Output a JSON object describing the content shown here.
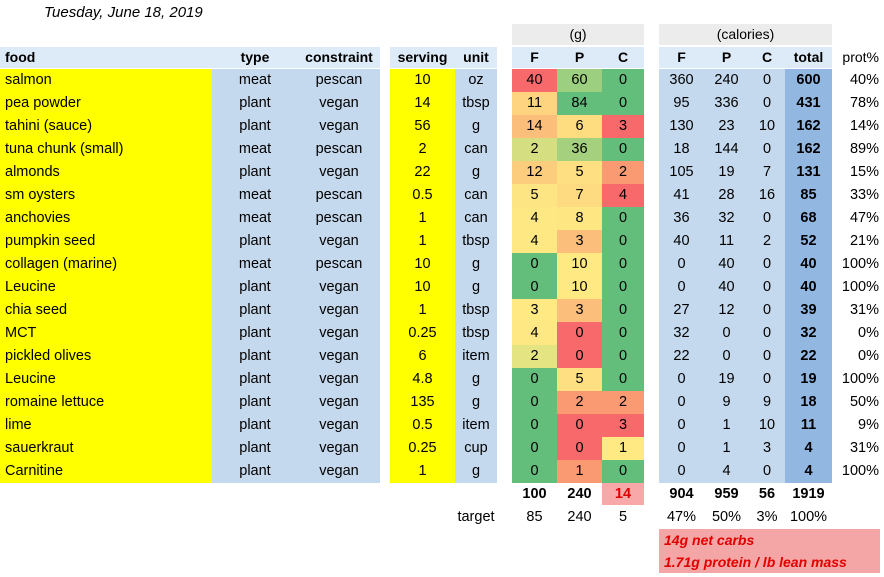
{
  "date": "Tuesday, June 18, 2019",
  "headers": {
    "food": "food",
    "type": "type",
    "constraint": "constraint",
    "serving": "serving",
    "unit": "unit",
    "g_group": "(g)",
    "cal_group": "(calories)",
    "gF": "F",
    "gP": "P",
    "gC": "C",
    "cF": "F",
    "cP": "P",
    "cC": "C",
    "total": "total",
    "prot": "prot%"
  },
  "rows": [
    {
      "food": "salmon",
      "type": "meat",
      "constraint": "pescan",
      "serving": "10",
      "unit": "oz",
      "gF": "40",
      "gP": "60",
      "gC": "0",
      "cF": "360",
      "cP": "240",
      "cC": "0",
      "total": "600",
      "prot": "40%",
      "colF": "#f8696b",
      "colP": "#9ccf7f",
      "colC": "#63be7b"
    },
    {
      "food": "pea powder",
      "type": "plant",
      "constraint": "vegan",
      "serving": "14",
      "unit": "tbsp",
      "gF": "11",
      "gP": "84",
      "gC": "0",
      "cF": "95",
      "cP": "336",
      "cC": "0",
      "total": "431",
      "prot": "78%",
      "colF": "#fed480",
      "colP": "#63be7b",
      "colC": "#63be7b"
    },
    {
      "food": "tahini (sauce)",
      "type": "plant",
      "constraint": "vegan",
      "serving": "56",
      "unit": "g",
      "gF": "14",
      "gP": "6",
      "gC": "3",
      "cF": "130",
      "cP": "23",
      "cC": "10",
      "total": "162",
      "prot": "14%",
      "colF": "#fcbf7b",
      "colP": "#fedd81",
      "colC": "#f8696b"
    },
    {
      "food": "tuna chunk (small)",
      "type": "meat",
      "constraint": "pescan",
      "serving": "2",
      "unit": "can",
      "gF": "2",
      "gP": "36",
      "gC": "0",
      "cF": "18",
      "cP": "144",
      "cC": "0",
      "total": "162",
      "prot": "89%",
      "colF": "#d5df81",
      "colP": "#a5d17f",
      "colC": "#63be7b"
    },
    {
      "food": "almonds",
      "type": "plant",
      "constraint": "vegan",
      "serving": "22",
      "unit": "g",
      "gF": "12",
      "gP": "5",
      "gC": "2",
      "cF": "105",
      "cP": "19",
      "cC": "7",
      "total": "131",
      "prot": "15%",
      "colF": "#fdcd7e",
      "colP": "#fee082",
      "colC": "#fa9a73"
    },
    {
      "food": "sm oysters",
      "type": "meat",
      "constraint": "pescan",
      "serving": "0.5",
      "unit": "can",
      "gF": "5",
      "gP": "7",
      "gC": "4",
      "cF": "41",
      "cP": "28",
      "cC": "16",
      "total": "85",
      "prot": "33%",
      "colF": "#fee583",
      "colP": "#fedb81",
      "colC": "#f8696b"
    },
    {
      "food": "anchovies",
      "type": "meat",
      "constraint": "pescan",
      "serving": "1",
      "unit": "can",
      "gF": "4",
      "gP": "8",
      "gC": "0",
      "cF": "36",
      "cP": "32",
      "cC": "0",
      "total": "68",
      "prot": "47%",
      "colF": "#fee883",
      "colP": "#fee683",
      "colC": "#63be7b"
    },
    {
      "food": "pumpkin seed",
      "type": "plant",
      "constraint": "vegan",
      "serving": "1",
      "unit": "tbsp",
      "gF": "4",
      "gP": "3",
      "gC": "0",
      "cF": "40",
      "cP": "11",
      "cC": "2",
      "total": "52",
      "prot": "21%",
      "colF": "#fee883",
      "colP": "#fcbf7b",
      "colC": "#63be7b"
    },
    {
      "food": "collagen (marine)",
      "type": "meat",
      "constraint": "pescan",
      "serving": "10",
      "unit": "g",
      "gF": "0",
      "gP": "10",
      "gC": "0",
      "cF": "0",
      "cP": "40",
      "cC": "0",
      "total": "40",
      "prot": "100%",
      "colF": "#63be7b",
      "colP": "#fee983",
      "colC": "#63be7b"
    },
    {
      "food": "Leucine",
      "type": "plant",
      "constraint": "vegan",
      "serving": "10",
      "unit": "g",
      "gF": "0",
      "gP": "10",
      "gC": "0",
      "cF": "0",
      "cP": "40",
      "cC": "0",
      "total": "40",
      "prot": "100%",
      "colF": "#63be7b",
      "colP": "#fee983",
      "colC": "#63be7b"
    },
    {
      "food": "chia seed",
      "type": "plant",
      "constraint": "vegan",
      "serving": "1",
      "unit": "tbsp",
      "gF": "3",
      "gP": "3",
      "gC": "0",
      "cF": "27",
      "cP": "12",
      "cC": "0",
      "total": "39",
      "prot": "31%",
      "colF": "#fee983",
      "colP": "#fcbf7b",
      "colC": "#63be7b"
    },
    {
      "food": "MCT",
      "type": "plant",
      "constraint": "vegan",
      "serving": "0.25",
      "unit": "tbsp",
      "gF": "4",
      "gP": "0",
      "gC": "0",
      "cF": "32",
      "cP": "0",
      "cC": "0",
      "total": "32",
      "prot": "0%",
      "colF": "#fee883",
      "colP": "#f8696b",
      "colC": "#63be7b"
    },
    {
      "food": "pickled olives",
      "type": "plant",
      "constraint": "vegan",
      "serving": "6",
      "unit": "item",
      "gF": "2",
      "gP": "0",
      "gC": "0",
      "cF": "22",
      "cP": "0",
      "cC": "0",
      "total": "22",
      "prot": "0%",
      "colF": "#e5e483",
      "colP": "#f8696b",
      "colC": "#63be7b"
    },
    {
      "food": "Leucine",
      "type": "plant",
      "constraint": "vegan",
      "serving": "4.8",
      "unit": "g",
      "gF": "0",
      "gP": "5",
      "gC": "0",
      "cF": "0",
      "cP": "19",
      "cC": "0",
      "total": "19",
      "prot": "100%",
      "colF": "#63be7b",
      "colP": "#fee082",
      "colC": "#63be7b"
    },
    {
      "food": "romaine lettuce",
      "type": "plant",
      "constraint": "vegan",
      "serving": "135",
      "unit": "g",
      "gF": "0",
      "gP": "2",
      "gC": "2",
      "cF": "0",
      "cP": "9",
      "cC": "9",
      "total": "18",
      "prot": "50%",
      "colF": "#63be7b",
      "colP": "#fa9a73",
      "colC": "#fa9a73"
    },
    {
      "food": "lime",
      "type": "plant",
      "constraint": "vegan",
      "serving": "0.5",
      "unit": "item",
      "gF": "0",
      "gP": "0",
      "gC": "3",
      "cF": "0",
      "cP": "1",
      "cC": "10",
      "total": "11",
      "prot": "9%",
      "colF": "#63be7b",
      "colP": "#f8696b",
      "colC": "#f8696b"
    },
    {
      "food": "sauerkraut",
      "type": "plant",
      "constraint": "vegan",
      "serving": "0.25",
      "unit": "cup",
      "gF": "0",
      "gP": "0",
      "gC": "1",
      "cF": "0",
      "cP": "1",
      "cC": "3",
      "total": "4",
      "prot": "31%",
      "colF": "#63be7b",
      "colP": "#f8696b",
      "colC": "#fee983"
    },
    {
      "food": "Carnitine",
      "type": "plant",
      "constraint": "vegan",
      "serving": "1",
      "unit": "g",
      "gF": "0",
      "gP": "1",
      "gC": "0",
      "cF": "0",
      "cP": "4",
      "cC": "0",
      "total": "4",
      "prot": "100%",
      "colF": "#63be7b",
      "colP": "#fa9a73",
      "colC": "#63be7b"
    }
  ],
  "totals": {
    "gF": "100",
    "gP": "240",
    "gC": "14",
    "cF": "904",
    "cP": "959",
    "cC": "56",
    "total": "1919",
    "carb_bg": "#f8a8a8",
    "carb_color": "#e00000"
  },
  "target": {
    "label": "target",
    "gF": "85",
    "gP": "240",
    "gC": "5",
    "pF": "47%",
    "pP": "50%",
    "pC": "3%",
    "pT": "100%"
  },
  "notes": [
    "14g net carbs",
    "1.71g protein / lb lean mass"
  ]
}
